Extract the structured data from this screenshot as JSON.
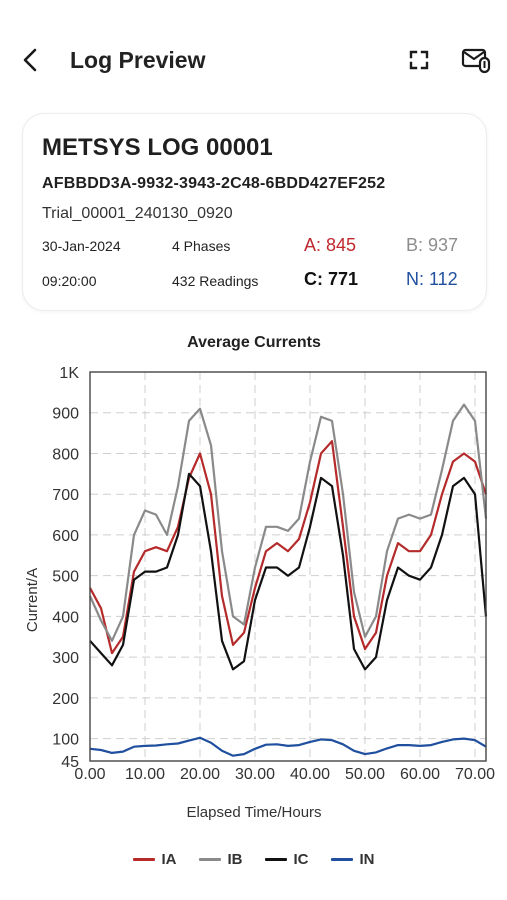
{
  "header": {
    "title": "Log Preview",
    "back_icon": "chevron-left-icon",
    "fullscreen_icon": "expand-icon",
    "mail_icon": "mail-attachment-icon"
  },
  "log": {
    "name": "METSYS LOG 00001",
    "id": "AFBBDD3A-9932-3943-2C48-6BDD427EF252",
    "trial": "Trial_00001_240130_0920",
    "date": "30-Jan-2024",
    "time": "09:20:00",
    "phases": "4 Phases",
    "readings": "432 Readings",
    "a": "A: 845",
    "b": "B: 937",
    "c": "C: 771",
    "n": "N: 112"
  },
  "colors": {
    "ia": "#b52a2a",
    "ib": "#8a8a8a",
    "ic": "#111111",
    "in": "#1f4f9e",
    "b_text": "#8e8e8e",
    "a_text": "#c0282d",
    "n_text": "#1f4f9e"
  },
  "chart_data": {
    "type": "line",
    "title": "Average Currents",
    "xlabel": "Elapsed Time/Hours",
    "ylabel": "Current/A",
    "xlim": [
      0,
      72
    ],
    "ylim": [
      45,
      1000
    ],
    "x_ticks": [
      0,
      10,
      20,
      30,
      40,
      50,
      60,
      70
    ],
    "x_tick_labels": [
      "0.00",
      "10.00",
      "20.00",
      "30.00",
      "40.00",
      "50.00",
      "60.00",
      "70.00"
    ],
    "y_ticks": [
      45,
      100,
      200,
      300,
      400,
      500,
      600,
      700,
      800,
      900,
      1000
    ],
    "y_tick_labels": [
      "45",
      "100",
      "200",
      "300",
      "400",
      "500",
      "600",
      "700",
      "800",
      "900",
      "1K"
    ],
    "grid": true,
    "legend_position": "bottom-center",
    "x": [
      0,
      2,
      4,
      6,
      8,
      10,
      12,
      14,
      16,
      18,
      20,
      22,
      24,
      26,
      28,
      30,
      32,
      34,
      36,
      38,
      40,
      42,
      44,
      46,
      48,
      50,
      52,
      54,
      56,
      58,
      60,
      62,
      64,
      66,
      68,
      70,
      72
    ],
    "series": [
      {
        "name": "IA",
        "values": [
          470,
          420,
          310,
          350,
          510,
          560,
          570,
          560,
          620,
          740,
          800,
          700,
          450,
          330,
          360,
          470,
          560,
          580,
          560,
          590,
          680,
          800,
          830,
          620,
          400,
          320,
          360,
          500,
          580,
          560,
          560,
          600,
          700,
          780,
          800,
          780,
          700
        ]
      },
      {
        "name": "IB",
        "values": [
          450,
          390,
          340,
          400,
          600,
          660,
          650,
          600,
          720,
          880,
          910,
          820,
          560,
          400,
          380,
          520,
          620,
          620,
          610,
          640,
          780,
          890,
          880,
          700,
          460,
          350,
          400,
          560,
          640,
          650,
          640,
          650,
          760,
          880,
          920,
          880,
          640
        ]
      },
      {
        "name": "IC",
        "values": [
          340,
          310,
          280,
          330,
          490,
          510,
          510,
          520,
          600,
          750,
          720,
          560,
          340,
          270,
          290,
          440,
          520,
          520,
          500,
          520,
          620,
          740,
          720,
          550,
          320,
          270,
          300,
          440,
          520,
          500,
          490,
          520,
          600,
          720,
          740,
          700,
          400
        ]
      },
      {
        "name": "IN",
        "values": [
          75,
          72,
          65,
          68,
          80,
          82,
          83,
          86,
          88,
          95,
          102,
          90,
          70,
          58,
          62,
          75,
          85,
          86,
          82,
          84,
          92,
          98,
          96,
          86,
          70,
          62,
          66,
          76,
          84,
          84,
          82,
          84,
          92,
          98,
          100,
          96,
          80
        ]
      }
    ]
  }
}
